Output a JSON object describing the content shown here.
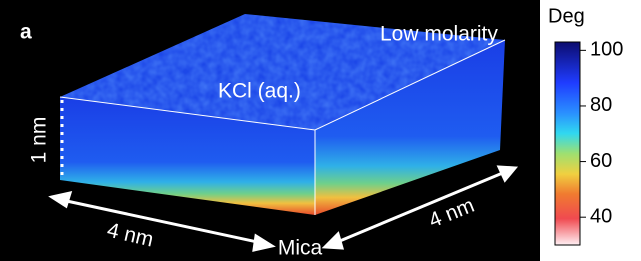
{
  "panel_label": "a",
  "condition": "Low molarity",
  "solution": "KCl (aq.)",
  "substrate": "Mica",
  "dimensions": {
    "height": "1 nm",
    "width": "4 nm",
    "depth": "4 nm"
  },
  "colorbar": {
    "label": "Deg",
    "range": [
      30,
      103
    ],
    "ticks": [
      40,
      60,
      80,
      100
    ]
  }
}
